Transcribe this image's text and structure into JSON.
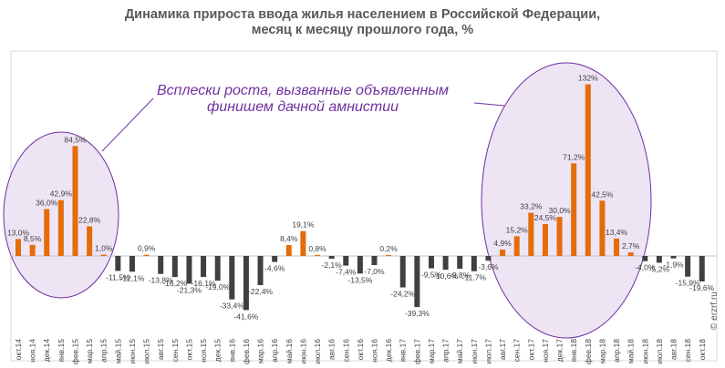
{
  "title_line1": "Динамика прироста ввода жилья населением в Российской Федерации,",
  "title_line2": "месяц к месяцу прошлого года, %",
  "annotation_line1": "Всплески роста, вызванные объявленным",
  "annotation_line2": "финишем дачной амнистии",
  "watermark": "© erzrf.ru",
  "colors": {
    "positive": "#e46c0a",
    "negative": "#404040",
    "ellipse_stroke": "#7030a0",
    "ellipse_fill": "#ede4f4",
    "axis": "#bfbfbf"
  },
  "chart_data": {
    "type": "bar",
    "categories": [
      "окт.14",
      "ноя.14",
      "дек.14",
      "янв.15",
      "фев.15",
      "мар.15",
      "апр.15",
      "май.15",
      "июн.15",
      "июл.15",
      "авг.15",
      "сен.15",
      "окт.15",
      "ноя.15",
      "дек.15",
      "янв.16",
      "фев.16",
      "мар.16",
      "апр.16",
      "май.16",
      "июн.16",
      "июл.16",
      "авг.16",
      "сен.16",
      "окт.16",
      "ноя.16",
      "дек.16",
      "янв.17",
      "фев.17",
      "мар.17",
      "апр.17",
      "май.17",
      "июн.17",
      "июл.17",
      "авг.17",
      "сен.17",
      "окт.17",
      "ноя.17",
      "дек.17",
      "янв.18",
      "фев.18",
      "мар.18",
      "апр.18",
      "май.18",
      "июн.18",
      "июл.18",
      "авг.18",
      "сен.18",
      "окт.18"
    ],
    "values": [
      13.0,
      8.5,
      36.0,
      42.9,
      84.5,
      22.8,
      1.0,
      -11.5,
      -12.1,
      0.9,
      -13.8,
      -16.2,
      -21.3,
      -16.1,
      -19.0,
      -33.4,
      -41.6,
      -22.4,
      -4.6,
      8.4,
      19.1,
      0.8,
      -2.1,
      -7.4,
      -13.5,
      -7.0,
      0.2,
      -24.2,
      -39.3,
      -9.5,
      -10.6,
      -9.8,
      -11.7,
      -3.6,
      4.9,
      15.2,
      33.2,
      24.5,
      30.0,
      71.2,
      132,
      42.5,
      13.4,
      2.7,
      -4.0,
      -5.2,
      -1.9,
      -15.9,
      -19.6
    ],
    "labels": [
      "13,0%",
      "8,5%",
      "36,0%",
      "42,9%",
      "84,5%",
      "22,8%",
      "1,0%",
      "-11,5%",
      "-12,1%",
      "0,9%",
      "-13,8%",
      "-16,2%",
      "-21,3%",
      "-16,1%",
      "-19,0%",
      "-33,4%",
      "-41,6%",
      "-22,4%",
      "-4,6%",
      "8,4%",
      "19,1%",
      "0,8%",
      "-2,1%",
      "-7,4%",
      "-13,5%",
      "-7,0%",
      "0,2%",
      "-24,2%",
      "-39,3%",
      "-9,5%",
      "-10,6%",
      "-9,8%",
      "-11,7%",
      "-3,6%",
      "4,9%",
      "15,2%",
      "33,2%",
      "24,5%",
      "30,0%",
      "71,2%",
      "132%",
      "42,5%",
      "13,4%",
      "2,7%",
      "-4,0%",
      "-5,2%",
      "-1,9%",
      "-15,9%",
      "-19,6%"
    ],
    "title": "Динамика прироста ввода жилья населением в Российской Федерации, месяц к месяцу прошлого года, %",
    "xlabel": "",
    "ylabel": "",
    "ylim": [
      -50,
      140
    ],
    "grid": false,
    "legend": "none"
  }
}
